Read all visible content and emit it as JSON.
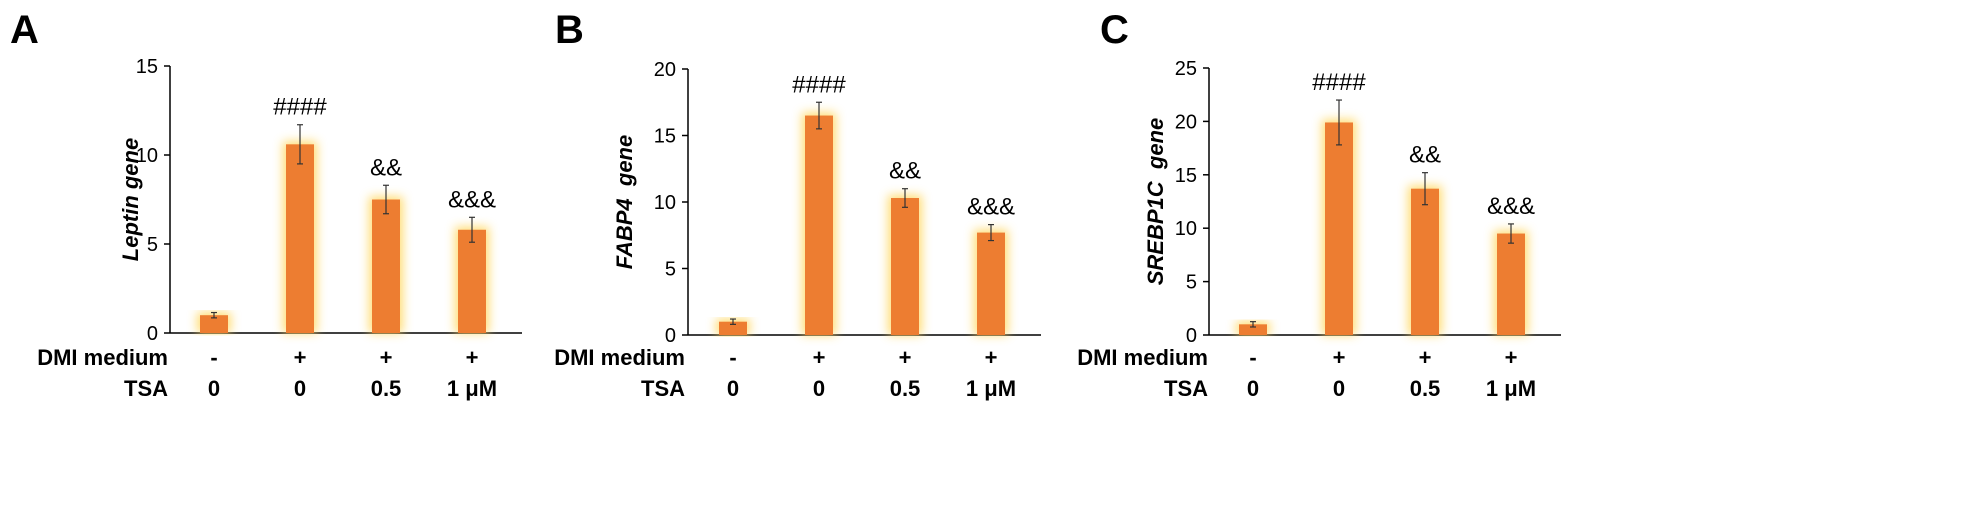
{
  "colors": {
    "bar": "#ED7D31",
    "glow": "#FFD966",
    "axis": "#000000"
  },
  "row_labels": {
    "dmi": "DMI medium",
    "tsa": "TSA"
  },
  "conditions": {
    "dmi": [
      "-",
      "+",
      "+",
      "+"
    ],
    "tsa": [
      "0",
      "0",
      "0.5",
      "1 μM"
    ]
  },
  "chart_data": [
    {
      "type": "bar",
      "panel_label": "A",
      "ylabel": "Leptin gene",
      "ylim": [
        0,
        15
      ],
      "yticks": [
        0,
        5,
        10,
        15
      ],
      "values": [
        1.0,
        10.6,
        7.5,
        5.8
      ],
      "errors": [
        0.15,
        1.1,
        0.8,
        0.7
      ],
      "annotations": [
        "",
        "####",
        "&&",
        "&&&"
      ]
    },
    {
      "type": "bar",
      "panel_label": "B",
      "ylabel": "FABP4  gene",
      "ylim": [
        0,
        20
      ],
      "yticks": [
        0,
        5,
        10,
        15,
        20
      ],
      "values": [
        1.0,
        16.5,
        10.3,
        7.7
      ],
      "errors": [
        0.2,
        1.0,
        0.7,
        0.6
      ],
      "annotations": [
        "",
        "####",
        "&&",
        "&&&"
      ]
    },
    {
      "type": "bar",
      "panel_label": "C",
      "ylabel": "SREBP1C  gene",
      "ylim": [
        0,
        25
      ],
      "yticks": [
        0,
        5,
        10,
        15,
        20,
        25
      ],
      "values": [
        1.0,
        19.9,
        13.7,
        9.5
      ],
      "errors": [
        0.25,
        2.1,
        1.5,
        0.9
      ],
      "annotations": [
        "",
        "####",
        "&&",
        "&&&"
      ]
    }
  ]
}
